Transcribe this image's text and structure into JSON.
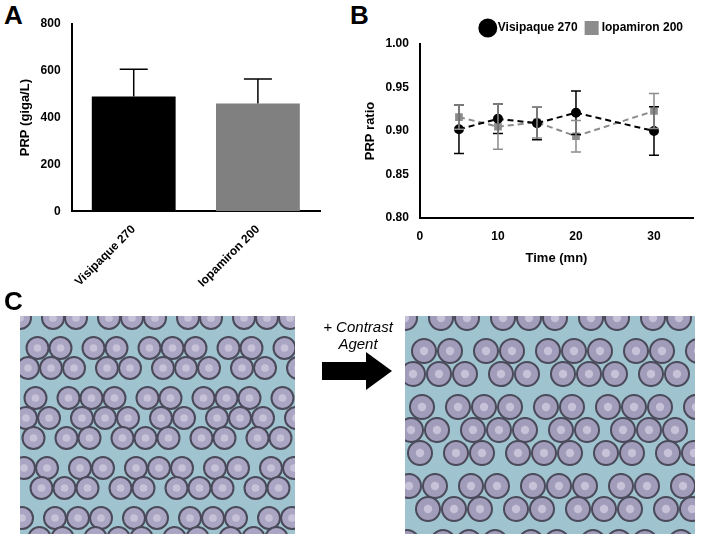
{
  "chart_data": [
    {
      "panel": "A",
      "type": "bar",
      "categories": [
        "Visipaque 270",
        "Iopamiron 200"
      ],
      "values": [
        490,
        460
      ],
      "error": [
        117,
        105
      ],
      "colors": [
        "#000000",
        "#808080"
      ],
      "y_label": "PRP (giga/L)",
      "ylim": [
        0,
        800
      ],
      "yticks": [
        0,
        200,
        400,
        600,
        800
      ],
      "grid": false
    },
    {
      "panel": "B",
      "type": "line",
      "x_label": "Time (mn)",
      "y_label": "PRP ratio",
      "x": [
        5,
        10,
        15,
        20,
        30
      ],
      "series": [
        {
          "name": "Visipaque 270",
          "color": "#000000",
          "marker": "circle",
          "line_style": "dashed",
          "values": [
            0.902,
            0.914,
            0.909,
            0.921,
            0.9
          ],
          "error": [
            0.028,
            0.017,
            0.019,
            0.025,
            0.028
          ]
        },
        {
          "name": "Iopamiron 200",
          "color": "#8c8c8c",
          "marker": "square",
          "line_style": "dashed",
          "values": [
            0.916,
            0.905,
            0.91,
            0.894,
            0.923
          ],
          "error": [
            0.014,
            0.026,
            0.018,
            0.018,
            0.02
          ]
        }
      ],
      "xlim": [
        0,
        35
      ],
      "xticks": [
        0,
        10,
        20,
        30
      ],
      "ylim": [
        0.8,
        1.0
      ],
      "yticks": [
        {
          "value": 0.8,
          "label": "0.80"
        },
        {
          "value": 0.85,
          "label": "0.85"
        },
        {
          "value": 0.9,
          "label": "0.90"
        },
        {
          "value": 0.95,
          "label": "0.95"
        },
        {
          "value": 1.0,
          "label": "1.00"
        }
      ],
      "grid": false,
      "legend": "top-right"
    }
  ],
  "figure_c": {
    "panel": "C",
    "arrow_label": "+ Contrast Agent"
  }
}
